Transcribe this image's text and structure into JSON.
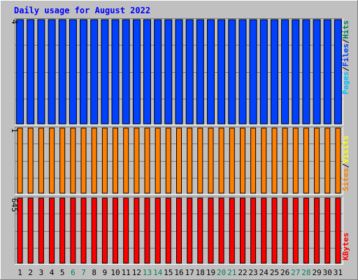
{
  "title": "Daily usage for August 2022",
  "colors": {
    "background": "#c0c0c0",
    "plot_background": "#c0c0c0",
    "title": "#0000ff",
    "hits": "#00805c",
    "files": "#0040ff",
    "pages": "#00c0ff",
    "visits": "#ffff00",
    "sites": "#ff8000",
    "kbytes": "#ff0000",
    "weekday_label": "#000000",
    "weekend_label": "#00805c"
  },
  "chart_data": [
    {
      "type": "bar",
      "panel": "hits-files-pages",
      "categories": [
        "1",
        "2",
        "3",
        "4",
        "5",
        "6",
        "7",
        "8",
        "9",
        "10",
        "11",
        "12",
        "13",
        "14",
        "15",
        "16",
        "17",
        "18",
        "19",
        "20",
        "21",
        "22",
        "23",
        "24",
        "25",
        "26",
        "27",
        "28",
        "29",
        "30",
        "31"
      ],
      "weekend_days": [
        "6",
        "7",
        "13",
        "14",
        "20",
        "21",
        "27",
        "28"
      ],
      "ylim": [
        0,
        4
      ],
      "y_tick_label": "4",
      "legend": [
        "Pages",
        "/",
        "Files",
        "/",
        "Hits"
      ],
      "series": [
        {
          "name": "Files",
          "color": "#0040ff",
          "values": [
            4,
            4,
            4,
            4,
            4,
            4,
            4,
            4,
            4,
            4,
            4,
            4,
            4,
            4,
            4,
            4,
            4,
            4,
            4,
            4,
            4,
            4,
            4,
            4,
            4,
            4,
            4,
            4,
            4,
            4,
            4
          ]
        }
      ]
    },
    {
      "type": "bar",
      "panel": "visits-sites",
      "categories": [
        "1",
        "2",
        "3",
        "4",
        "5",
        "6",
        "7",
        "8",
        "9",
        "10",
        "11",
        "12",
        "13",
        "14",
        "15",
        "16",
        "17",
        "18",
        "19",
        "20",
        "21",
        "22",
        "23",
        "24",
        "25",
        "26",
        "27",
        "28",
        "29",
        "30",
        "31"
      ],
      "ylim": [
        0,
        1
      ],
      "y_tick_label": "1",
      "legend": [
        "Sites",
        "/",
        "Visits"
      ],
      "series": [
        {
          "name": "Sites",
          "color": "#ff8000",
          "values": [
            1,
            1,
            1,
            1,
            1,
            1,
            1,
            1,
            1,
            1,
            1,
            1,
            1,
            1,
            1,
            1,
            1,
            1,
            1,
            1,
            1,
            1,
            1,
            1,
            1,
            1,
            1,
            1,
            1,
            1,
            1
          ]
        }
      ]
    },
    {
      "type": "bar",
      "panel": "kbytes",
      "categories": [
        "1",
        "2",
        "3",
        "4",
        "5",
        "6",
        "7",
        "8",
        "9",
        "10",
        "11",
        "12",
        "13",
        "14",
        "15",
        "16",
        "17",
        "18",
        "19",
        "20",
        "21",
        "22",
        "23",
        "24",
        "25",
        "26",
        "27",
        "28",
        "29",
        "30",
        "31"
      ],
      "ylim": [
        0,
        645
      ],
      "y_tick_label": "645",
      "legend": [
        "KBytes"
      ],
      "series": [
        {
          "name": "KBytes",
          "color": "#ff0000",
          "values": [
            645,
            645,
            645,
            645,
            645,
            645,
            645,
            645,
            645,
            645,
            645,
            645,
            645,
            645,
            645,
            645,
            645,
            645,
            645,
            645,
            645,
            645,
            645,
            645,
            645,
            645,
            645,
            645,
            645,
            645,
            645
          ]
        }
      ]
    }
  ]
}
